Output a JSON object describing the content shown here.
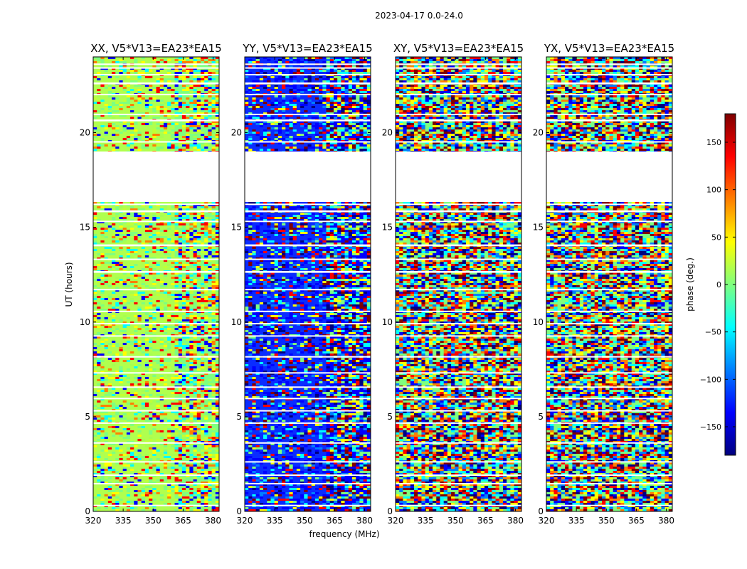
{
  "figure": {
    "suptitle": "2023-04-17 0.0-24.0"
  },
  "chart_data": {
    "type": "heatmap",
    "panels": [
      {
        "title": "XX, V5*V13=EA23*EA15",
        "palette": "green",
        "key": "xx"
      },
      {
        "title": "YY, V5*V13=EA23*EA15",
        "palette": "blue",
        "key": "yy"
      },
      {
        "title": "XY, V5*V13=EA23*EA15",
        "palette": "noise",
        "key": "xy"
      },
      {
        "title": "YX, V5*V13=EA23*EA15",
        "palette": "noise",
        "key": "yx"
      }
    ],
    "xlabel": "frequency (MHz)",
    "ylabel": "UT (hours)",
    "x_ticks": [
      "320",
      "335",
      "350",
      "365",
      "380"
    ],
    "x_tick_values": [
      320,
      335,
      350,
      365,
      380
    ],
    "xlim": [
      320,
      383
    ],
    "y_ticks": [
      "0",
      "5",
      "10",
      "15",
      "20"
    ],
    "y_tick_values": [
      0,
      5,
      10,
      15,
      20
    ],
    "ylim": [
      0,
      24
    ],
    "colorbar": {
      "label": "phase (deg.)",
      "ticks": [
        "150",
        "100",
        "50",
        "0",
        "−50",
        "−100",
        "−150"
      ],
      "tick_values": [
        150,
        100,
        50,
        0,
        -50,
        -100,
        -150
      ],
      "range": [
        -180,
        180
      ],
      "colormap": "jet",
      "colormap_stops": [
        "#00007f",
        "#0000ff",
        "#007fff",
        "#00ffff",
        "#7fff7f",
        "#ffff00",
        "#ff7f00",
        "#ff0000",
        "#7f0000"
      ]
    },
    "data_gaps_ut": [
      [
        0.3,
        0.35
      ],
      [
        1.45,
        1.5
      ],
      [
        1.9,
        1.95
      ],
      [
        2.6,
        2.65
      ],
      [
        3.6,
        3.65
      ],
      [
        4.65,
        4.7
      ],
      [
        5.3,
        5.35
      ],
      [
        5.95,
        6.0
      ],
      [
        6.55,
        6.6
      ],
      [
        7.3,
        7.35
      ],
      [
        8.15,
        8.2
      ],
      [
        9.25,
        9.3
      ],
      [
        9.9,
        9.95
      ],
      [
        10.55,
        10.6
      ],
      [
        11.7,
        11.75
      ],
      [
        12.6,
        12.7
      ],
      [
        13.3,
        13.35
      ],
      [
        14.0,
        14.1
      ],
      [
        15.3,
        15.35
      ],
      [
        15.8,
        15.9
      ],
      [
        16.2,
        16.25
      ],
      [
        19.0,
        16.4
      ],
      [
        19.5,
        19.55
      ],
      [
        20.6,
        20.7
      ],
      [
        20.95,
        21.0
      ],
      [
        22.0,
        22.05
      ],
      [
        22.55,
        22.65
      ],
      [
        23.05,
        23.1
      ],
      [
        23.4,
        23.45
      ],
      [
        23.6,
        23.65
      ]
    ],
    "no_data_ut": [
      16.4,
      19.0
    ]
  }
}
